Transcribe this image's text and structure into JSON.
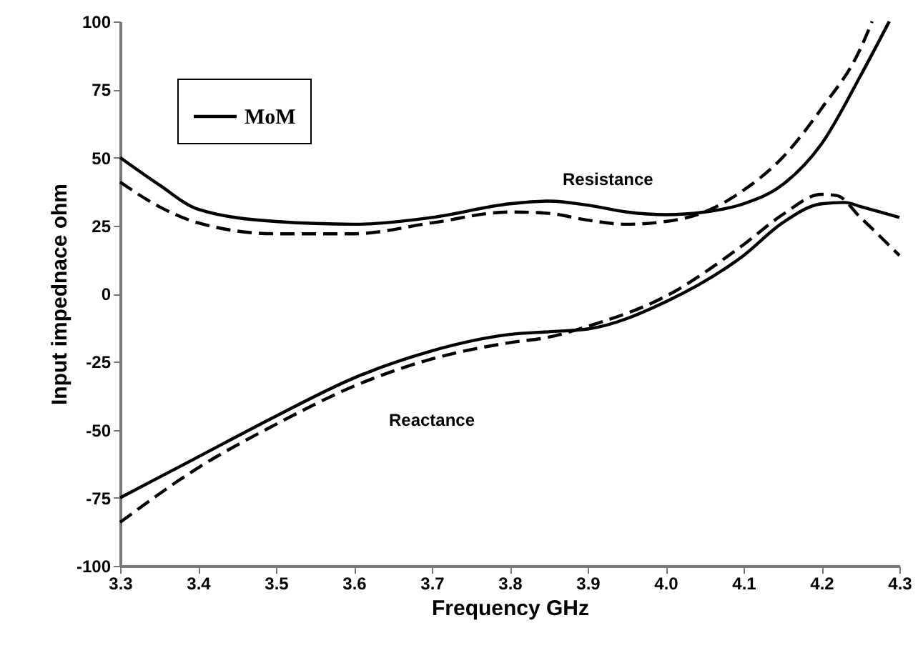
{
  "chart_data": {
    "type": "line",
    "xlabel": "Frequency GHz",
    "ylabel": "Input impednace ohm",
    "xlim": [
      3.3,
      4.3
    ],
    "xticks": [
      3.3,
      3.4,
      3.5,
      3.6,
      3.7,
      3.8,
      3.9,
      {
        "value": 4,
        "label": "4.0"
      },
      4.1,
      4.2,
      4.3
    ],
    "ylim": [
      -100,
      100
    ],
    "yticks": [
      -100,
      -75,
      -50,
      -25,
      0,
      25,
      50,
      75,
      100
    ],
    "grid": false,
    "legend": "top left",
    "marker": "none",
    "series": [
      {
        "name": "MoM",
        "color": "#000000",
        "line_style": "solid",
        "x": [
          3.3,
          3.35,
          3.4,
          3.5,
          3.6,
          3.7,
          3.8,
          3.85,
          3.9,
          3.95,
          4.0,
          4.05,
          4.1,
          4.15,
          4.2,
          4.25,
          4.287
        ],
        "values": [
          50,
          40,
          31,
          26.5,
          25.5,
          28,
          33,
          34,
          32.5,
          30,
          29,
          30,
          33,
          40,
          55,
          80,
          100
        ]
      },
      {
        "color": "#000000",
        "line_style": "dashed",
        "x": [
          3.3,
          3.35,
          3.4,
          3.5,
          3.6,
          3.7,
          3.8,
          3.85,
          3.9,
          3.95,
          4.0,
          4.05,
          4.1,
          4.15,
          4.2,
          4.25,
          4.265
        ],
        "values": [
          41,
          32,
          26,
          22,
          22,
          26,
          30,
          29.5,
          27,
          25.5,
          26.5,
          30,
          38,
          50,
          68,
          90,
          100
        ]
      },
      {
        "color": "#000000",
        "line_style": "solid",
        "x": [
          3.3,
          3.4,
          3.5,
          3.6,
          3.7,
          3.8,
          3.85,
          3.9,
          4.0,
          4.1,
          4.15,
          4.2,
          4.23,
          4.25,
          4.3
        ],
        "values": [
          -75,
          -60,
          -45,
          -31,
          -21,
          -15,
          -14,
          -13,
          -3,
          14,
          26,
          33,
          33.5,
          32,
          28
        ]
      },
      {
        "color": "#000000",
        "line_style": "dashed",
        "x": [
          3.3,
          3.4,
          3.5,
          3.6,
          3.7,
          3.8,
          3.85,
          3.9,
          4.0,
          4.1,
          4.15,
          4.2,
          4.22,
          4.25,
          4.3
        ],
        "values": [
          -84,
          -64,
          -48,
          -34,
          -24,
          -18,
          -16,
          -12,
          -1,
          18,
          29,
          36.5,
          36,
          28,
          14
        ]
      }
    ],
    "annotations": [
      {
        "text": "Resistance",
        "x": 3.926,
        "y": 31
      },
      {
        "text": "Reactance",
        "x": 3.7,
        "y": -24
      }
    ]
  }
}
